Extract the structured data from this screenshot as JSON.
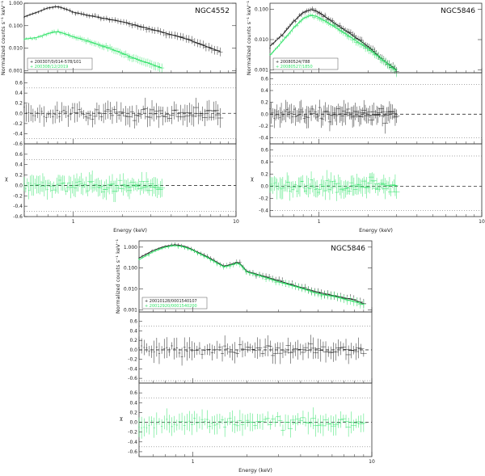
{
  "figure": {
    "xlabel": "Energy (keV)",
    "spec_ylabel": "Normalized counts s⁻¹ keV⁻¹",
    "resid_ylabel": "χ",
    "colors": {
      "obs1": "#222222",
      "obs2": "#34e36b",
      "ref": "#666666"
    }
  },
  "chart_data": [
    {
      "type": "line",
      "title": "NGC4552",
      "xlabel": "Energy (keV)",
      "xscale": "log",
      "xlim": [
        0.5,
        10
      ],
      "xticks": [
        "1",
        "10"
      ],
      "spectrum": {
        "ylabel": "Normalized counts s⁻¹ keV⁻¹",
        "yscale": "log",
        "ylim": [
          0.0008,
          1.0
        ],
        "yticks": [
          "0.001",
          "0.010",
          "0.100",
          "1.000"
        ],
        "legend": [
          "+ 200307/0/014-578/101",
          "+ 200308/12/2019"
        ],
        "series": [
          {
            "energy": [
              0.5,
              0.6,
              0.7,
              0.8,
              0.9,
              1.0,
              1.2,
              1.5,
              2.0,
              3.0,
              4.0,
              5.0,
              6.0,
              7.0,
              8.0
            ],
            "counts": [
              0.25,
              0.4,
              0.62,
              0.72,
              0.55,
              0.4,
              0.3,
              0.22,
              0.15,
              0.07,
              0.04,
              0.025,
              0.015,
              0.01,
              0.007
            ]
          },
          {
            "energy": [
              0.5,
              0.6,
              0.7,
              0.8,
              0.9,
              1.0,
              1.2,
              1.5,
              2.0,
              2.5,
              3.0,
              3.5
            ],
            "counts": [
              0.025,
              0.03,
              0.045,
              0.055,
              0.042,
              0.032,
              0.022,
              0.013,
              0.006,
              0.003,
              0.002,
              0.0013
            ]
          }
        ]
      },
      "residual_panels": [
        {
          "ylim": [
            -0.6,
            0.8
          ],
          "yticks": [
            "0.6",
            "0.4",
            "0.2",
            "0.0",
            "-0.2",
            "-0.4",
            "-0.6"
          ],
          "dotted": [
            -0.5,
            0.5
          ],
          "series": 0
        },
        {
          "ylim": [
            -0.6,
            0.8
          ],
          "yticks": [
            "0.6",
            "0.4",
            "0.2",
            "0.0",
            "-0.2",
            "-0.4",
            "-0.6"
          ],
          "dotted": [
            -0.5,
            0.5
          ],
          "series": 1
        }
      ]
    },
    {
      "type": "line",
      "title": "NGC5846",
      "xlabel": "Energy (keV)",
      "xscale": "log",
      "xlim": [
        0.5,
        10
      ],
      "xticks": [
        "1",
        "10"
      ],
      "spectrum": {
        "ylabel": "Normalized counts s⁻¹ keV⁻¹",
        "yscale": "log",
        "ylim": [
          0.0008,
          0.16
        ],
        "yticks": [
          "0.001",
          "0.010",
          "0.100"
        ],
        "legend": [
          "+ 20080524/788",
          "+ 20080527/1850"
        ],
        "series": [
          {
            "energy": [
              0.5,
              0.6,
              0.7,
              0.8,
              0.9,
              1.0,
              1.2,
              1.5,
              2.0,
              2.5,
              3.0
            ],
            "counts": [
              0.006,
              0.015,
              0.04,
              0.08,
              0.1,
              0.08,
              0.04,
              0.018,
              0.006,
              0.002,
              0.001
            ]
          },
          {
            "energy": [
              0.5,
              0.6,
              0.7,
              0.8,
              0.9,
              1.0,
              1.2,
              1.5,
              2.0,
              2.5,
              3.0
            ],
            "counts": [
              0.003,
              0.009,
              0.025,
              0.05,
              0.065,
              0.055,
              0.03,
              0.014,
              0.005,
              0.002,
              0.0009
            ]
          }
        ]
      },
      "residual_panels": [
        {
          "ylim": [
            -0.5,
            0.7
          ],
          "yticks": [
            "0.6",
            "0.4",
            "0.2",
            "0.0",
            "-0.2",
            "-0.4"
          ],
          "dotted": [
            -0.4,
            0.5
          ],
          "series": 0
        },
        {
          "ylim": [
            -0.5,
            0.7
          ],
          "yticks": [
            "0.6",
            "0.4",
            "0.2",
            "0.0",
            "-0.2",
            "-0.4"
          ],
          "dotted": [
            -0.4,
            0.5
          ],
          "series": 1
        }
      ]
    },
    {
      "type": "line",
      "title": "NGC5846",
      "xlabel": "Energy (keV)",
      "xscale": "log",
      "xlim": [
        0.5,
        10
      ],
      "xticks": [
        "1",
        "10"
      ],
      "spectrum": {
        "ylabel": "Normalized counts s⁻¹ keV⁻¹",
        "yscale": "log",
        "ylim": [
          0.0008,
          2.0
        ],
        "yticks": [
          "0.001",
          "0.010",
          "0.100",
          "1.000"
        ],
        "legend": [
          "+ 20010128/0001540107",
          "+ 20012920/0001540200"
        ],
        "series": [
          {
            "energy": [
              0.5,
              0.6,
              0.7,
              0.8,
              0.9,
              1.0,
              1.2,
              1.5,
              1.8,
              2.0,
              2.5,
              3.0,
              4.0,
              5.0,
              6.0,
              8.0,
              9.0
            ],
            "counts": [
              0.3,
              0.7,
              1.1,
              1.3,
              1.1,
              0.75,
              0.35,
              0.12,
              0.2,
              0.07,
              0.04,
              0.025,
              0.012,
              0.007,
              0.005,
              0.003,
              0.002
            ]
          },
          {
            "energy": [
              0.5,
              0.6,
              0.7,
              0.8,
              0.9,
              1.0,
              1.2,
              1.5,
              1.8,
              2.0,
              2.5,
              3.0,
              4.0,
              5.0,
              6.0,
              8.0,
              9.0
            ],
            "counts": [
              0.25,
              0.6,
              1.0,
              1.2,
              1.0,
              0.7,
              0.32,
              0.11,
              0.18,
              0.065,
              0.037,
              0.022,
              0.011,
              0.006,
              0.0045,
              0.0025,
              0.0018
            ]
          }
        ]
      },
      "residual_panels": [
        {
          "ylim": [
            -0.7,
            0.8
          ],
          "yticks": [
            "0.6",
            "0.4",
            "0.2",
            "0.0",
            "-0.2",
            "-0.4",
            "-0.6"
          ],
          "dotted": [
            -0.65,
            0.5
          ],
          "series": 0
        },
        {
          "ylim": [
            -0.7,
            0.8
          ],
          "yticks": [
            "0.6",
            "0.4",
            "0.2",
            "0.0",
            "-0.2",
            "-0.4",
            "-0.6"
          ],
          "dotted": [
            -0.5,
            0.5
          ],
          "series": 1
        }
      ]
    }
  ]
}
